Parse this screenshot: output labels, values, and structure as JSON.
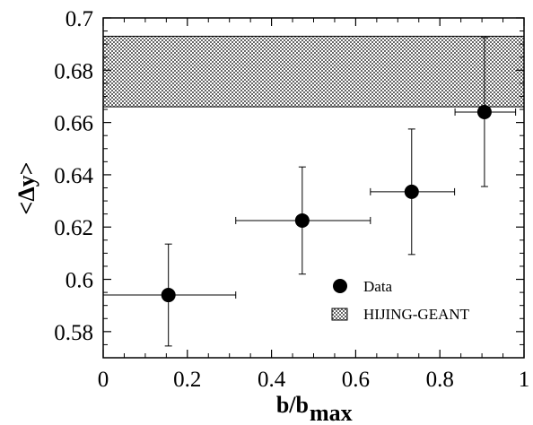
{
  "chart_data": {
    "type": "scatter",
    "xlabel": "b/b",
    "xlabel_sub": "max",
    "ylabel": "<Δy>",
    "xlim": [
      0,
      1
    ],
    "ylim": [
      0.57,
      0.7
    ],
    "x_ticks": [
      0,
      0.2,
      0.4,
      0.6,
      0.8,
      1
    ],
    "x_tick_labels": [
      "0",
      "0.2",
      "0.4",
      "0.6",
      "0.8",
      "1"
    ],
    "y_ticks": [
      0.58,
      0.6,
      0.62,
      0.64,
      0.66,
      0.68,
      0.7
    ],
    "y_tick_labels": [
      "0.58",
      "0.6",
      "0.62",
      "0.64",
      "0.66",
      "0.68",
      "0.7"
    ],
    "series": [
      {
        "name": "Data",
        "points": [
          {
            "x": 0.155,
            "y": 0.594,
            "xerr_low": 0.155,
            "xerr_high": 0.16,
            "yerr_low": 0.0195,
            "yerr_high": 0.0195
          },
          {
            "x": 0.473,
            "y": 0.6225,
            "xerr_low": 0.158,
            "xerr_high": 0.162,
            "yerr_low": 0.0205,
            "yerr_high": 0.0205
          },
          {
            "x": 0.733,
            "y": 0.6335,
            "xerr_low": 0.098,
            "xerr_high": 0.102,
            "yerr_low": 0.024,
            "yerr_high": 0.024
          },
          {
            "x": 0.906,
            "y": 0.664,
            "xerr_low": 0.07,
            "xerr_high": 0.074,
            "yerr_low": 0.0285,
            "yerr_high": 0.0285
          }
        ]
      },
      {
        "name": "HIJING-GEANT",
        "band": {
          "x_from": 0,
          "x_to": 1,
          "y_low": 0.666,
          "y_high": 0.693
        }
      }
    ],
    "legend_position": "lower-right",
    "grid": false
  },
  "colors": {
    "axis": "#000000",
    "marker": "#000000",
    "band_hatch": "#555555"
  }
}
